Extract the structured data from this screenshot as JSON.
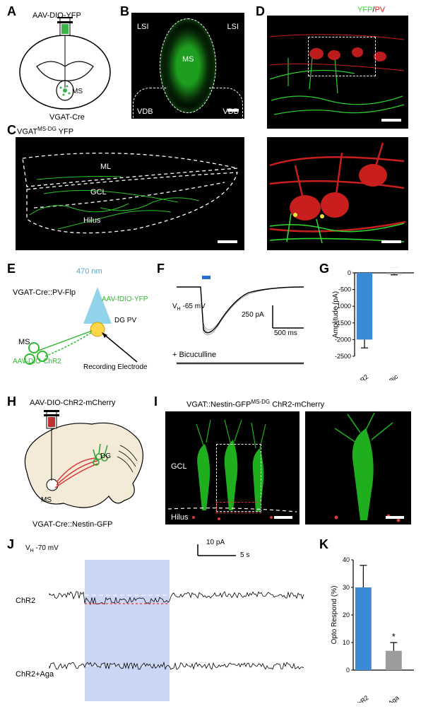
{
  "labels": {
    "A": "A",
    "B": "B",
    "C": "C",
    "D": "D",
    "E": "E",
    "F": "F",
    "G": "G",
    "H": "H",
    "I": "I",
    "J": "J",
    "K": "K"
  },
  "A": {
    "virus": "AAV-DIO-YFP",
    "ms": "MS",
    "mouse": "VGAT-Cre",
    "syringe_color": "#39b54a",
    "outline_color": "#000000"
  },
  "B": {
    "regions": {
      "LSI_L": "LSI",
      "LSI_R": "LSI",
      "MS": "MS",
      "VDB_L": "VDB",
      "VDB_R": "VDB"
    },
    "bg": "#0a0a0a",
    "signal_color": "#2fd82f"
  },
  "C": {
    "title_pre": "VGAT",
    "title_sup": "MS-DG",
    "title_post": " YFP",
    "regions": {
      "ML": "ML",
      "GCL": "GCL",
      "Hilus": "Hilus"
    },
    "bg": "#0a0a0a",
    "signal_color": "#2fd82f"
  },
  "D": {
    "legend": {
      "yfp": "YFP",
      "pv": "PV"
    },
    "yfp_color": "#2fd82f",
    "pv_color": "#e11919",
    "bg": "#0a0a0a"
  },
  "E": {
    "wavelength": "470 nm",
    "cross": "VGAT-Cre::PV-Flp",
    "virus_right": "AAV-fDIO-YFP",
    "pv_label": "DG PV",
    "ms": "MS",
    "virus_left": "AAV-DIO-ChR2",
    "electrode": "Recording Electrode",
    "light_color": "#7ecbe6",
    "green": "#2fb82f"
  },
  "F": {
    "vh": "V",
    "vh_sub": "H",
    "vh_val": " -65 mV",
    "y_scale": "250 pA",
    "x_scale": "500 ms",
    "bic": "+ Bicuculline",
    "trace_color": "#7a7a7a",
    "led_color": "#2a6bd6"
  },
  "G": {
    "ylabel": "Amplitude (pA)",
    "ylim": [
      0,
      -2500
    ],
    "yticks": [
      0,
      -500,
      -1000,
      -1500,
      -2000,
      -2500
    ],
    "bars": [
      {
        "label": "ChR2",
        "value": -2000,
        "err": 250,
        "color": "#3a8ad6"
      },
      {
        "label": "ChR2+Bic",
        "value": -35,
        "err": 25,
        "color": "#9c9c9c"
      }
    ],
    "sig": "***",
    "axis_color": "#000",
    "font_size": 10
  },
  "H": {
    "virus": "AAV-DIO-ChR2-mCherry",
    "ms": "MS",
    "dg": "DG",
    "mouse": "VGAT-Cre::Nestin-GFP",
    "syringe_color": "#c03030",
    "proj_red": "#d63a3a",
    "proj_green": "#3aa03a",
    "brain_fill": "#f3ead7"
  },
  "I": {
    "title_pre": "VGAT::Nestin-GFP",
    "title_sup": "MS-DG",
    "title_post": " ChR2-mCherry",
    "regions": {
      "GCL": "GCL",
      "Hilus": "Hilus"
    },
    "gfp_color": "#2fd82f",
    "mcherry_color": "#e11919",
    "bg": "#0a0a0a"
  },
  "J": {
    "vh_pre": "V",
    "vh_sub": "H",
    "vh_val": " -70 mV",
    "y_scale": "10 pA",
    "x_scale": "5 s",
    "row1": "ChR2",
    "row2": "ChR2+Aga",
    "stim_color": "#b8c8f0",
    "baseline_color": "#ffffff",
    "step_color": "#d63a3a",
    "trace_color": "#000000"
  },
  "K": {
    "ylabel": "Opto Respond (%)",
    "ylim": [
      0,
      40
    ],
    "yticks": [
      0,
      10,
      20,
      30,
      40
    ],
    "bars": [
      {
        "label": "ChR2",
        "value": 30,
        "err": 8,
        "color": "#3a8ad6"
      },
      {
        "label": "ChR2+Aga",
        "value": 7,
        "err": 3,
        "color": "#9c9c9c"
      }
    ],
    "sig": "*",
    "axis_color": "#000",
    "font_size": 10
  }
}
